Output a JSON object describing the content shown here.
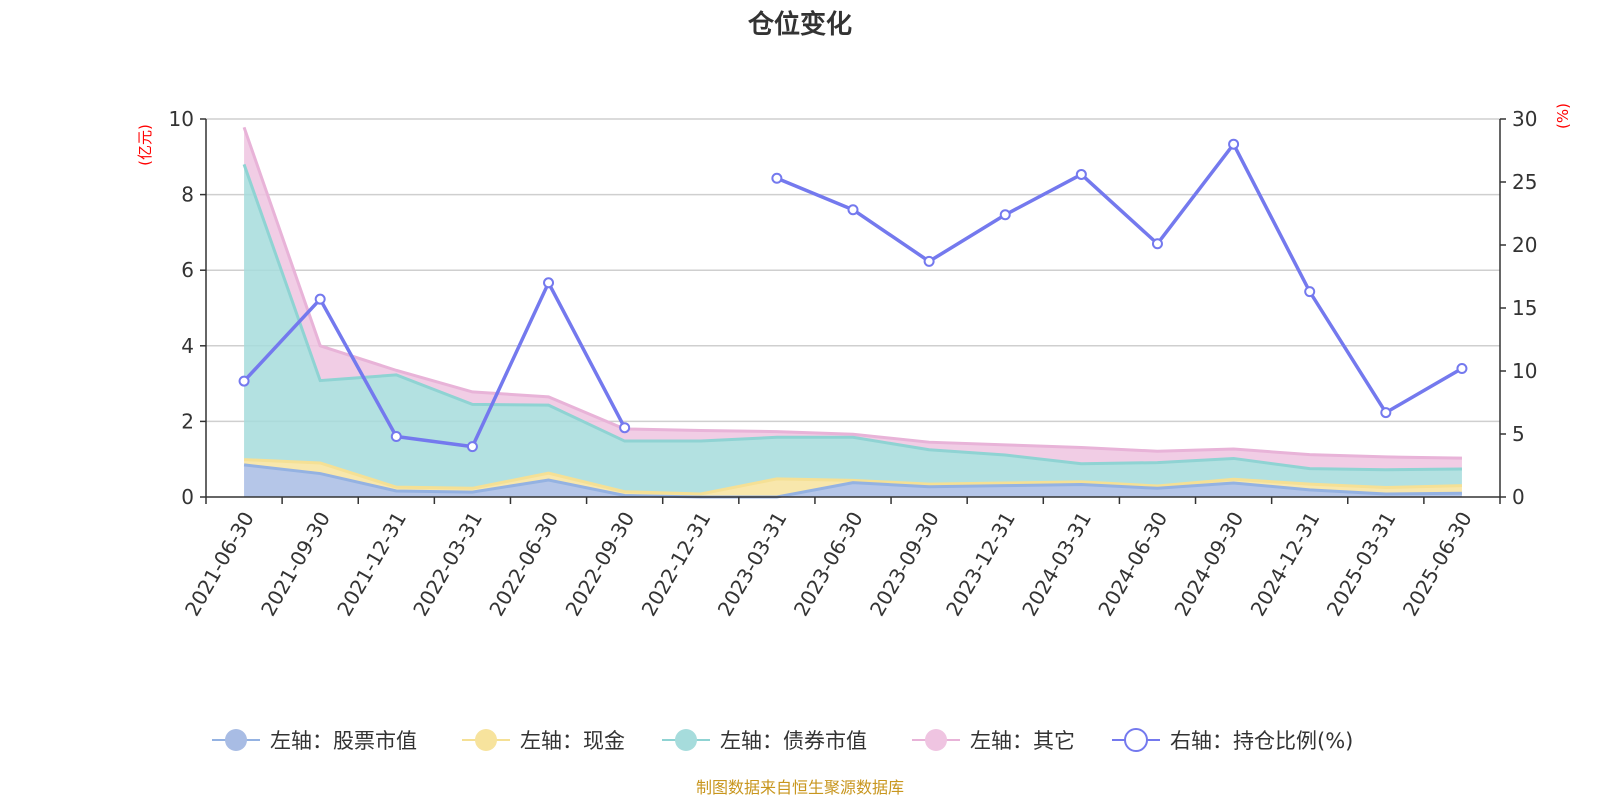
{
  "title": "仓位变化",
  "source_note": "制图数据来自恒生聚源数据库",
  "left_unit": "(亿元)",
  "right_unit": "(%)",
  "colors": {
    "stock": "#a8bce4",
    "cash": "#f7e39d",
    "bond": "#a6dcdc",
    "other": "#efc4e1",
    "stock_line": "#94b2e2",
    "cash_line": "#f5e095",
    "bond_line": "#8fd3d3",
    "other_line": "#e8b3d8",
    "ratio_line": "#7479ee"
  },
  "chart_data": {
    "type": "area",
    "title": "仓位变化",
    "x": [
      "2021-06-30",
      "2021-09-30",
      "2021-12-31",
      "2022-03-31",
      "2022-06-30",
      "2022-09-30",
      "2022-12-31",
      "2023-03-31",
      "2023-06-30",
      "2023-09-30",
      "2023-12-31",
      "2024-03-31",
      "2024-06-30",
      "2024-09-30",
      "2024-12-31",
      "2025-03-31",
      "2025-06-30"
    ],
    "left_axis": {
      "unit": "(亿元)",
      "ylim": [
        0,
        10
      ],
      "ticks": [
        0,
        2,
        4,
        6,
        8,
        10
      ]
    },
    "right_axis": {
      "unit": "(%)",
      "ylim": [
        0,
        30
      ],
      "ticks": [
        0,
        5,
        10,
        15,
        20,
        25,
        30
      ]
    },
    "grid": true,
    "legend_position": "bottom",
    "series": [
      {
        "name": "左轴：股票市值",
        "axis": "left",
        "stacked": true,
        "values": [
          0.85,
          0.62,
          0.16,
          0.13,
          0.45,
          0.04,
          0.0,
          0.0,
          0.38,
          0.27,
          0.3,
          0.33,
          0.23,
          0.37,
          0.19,
          0.08,
          0.1
        ]
      },
      {
        "name": "左轴：现金",
        "axis": "left",
        "stacked": true,
        "values": [
          0.14,
          0.28,
          0.1,
          0.1,
          0.18,
          0.1,
          0.08,
          0.48,
          0.06,
          0.07,
          0.07,
          0.07,
          0.06,
          0.1,
          0.15,
          0.17,
          0.2
        ]
      },
      {
        "name": "左轴：债券市值",
        "axis": "left",
        "stacked": true,
        "values": [
          7.81,
          2.18,
          2.97,
          2.22,
          1.8,
          1.34,
          1.4,
          1.1,
          1.14,
          0.91,
          0.74,
          0.48,
          0.62,
          0.55,
          0.41,
          0.47,
          0.44
        ]
      },
      {
        "name": "左轴：其它",
        "axis": "left",
        "stacked": true,
        "values": [
          0.98,
          0.92,
          0.12,
          0.33,
          0.22,
          0.32,
          0.28,
          0.15,
          0.08,
          0.2,
          0.27,
          0.43,
          0.3,
          0.25,
          0.37,
          0.34,
          0.29
        ]
      },
      {
        "name": "右轴：持仓比例(%)",
        "axis": "right",
        "type": "line",
        "values": [
          9.2,
          15.7,
          4.8,
          4.0,
          17.0,
          5.5,
          null,
          25.3,
          22.8,
          18.7,
          22.4,
          25.6,
          20.1,
          28.0,
          16.3,
          6.7,
          10.2
        ]
      }
    ]
  }
}
